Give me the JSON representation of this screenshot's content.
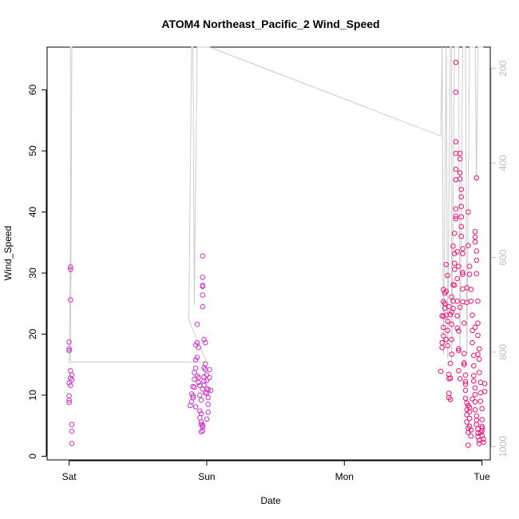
{
  "chart_data": {
    "type": "scatter",
    "title": "ATOM4 Northeast_Pacific_2 Wind_Speed",
    "xlabel": "Date",
    "ylabel": "Wind_Speed",
    "x_ticks": [
      {
        "label": "Sat",
        "value": 0
      },
      {
        "label": "Sun",
        "value": 1
      },
      {
        "label": "Mon",
        "value": 2
      },
      {
        "label": "Tue",
        "value": 3
      }
    ],
    "y_ticks": [
      0,
      10,
      20,
      30,
      40,
      50,
      60
    ],
    "y_ticks_right": [
      200,
      400,
      600,
      800,
      1000
    ],
    "xlim": [
      -0.16,
      3.06
    ],
    "ylim": [
      -0.6,
      67
    ],
    "ylim_right": [
      1028,
      155
    ],
    "grid": false,
    "colors": {
      "points_early": "#cc33cc",
      "points_late": "#ee1177",
      "line": "#cccccc"
    },
    "series": [
      {
        "kind": "points",
        "points": [
          [
            0.01,
            31.0
          ],
          [
            0.01,
            30.6
          ],
          [
            0.01,
            25.6
          ],
          [
            0.0,
            18.7
          ],
          [
            0.0,
            17.6
          ],
          [
            0.0,
            17.3
          ],
          [
            0.01,
            14.0
          ],
          [
            0.02,
            13.3
          ],
          [
            0.01,
            12.8
          ],
          [
            0.02,
            12.5
          ],
          [
            0.0,
            12.0
          ],
          [
            0.01,
            11.6
          ],
          [
            0.0,
            9.9
          ],
          [
            0.0,
            9.2
          ],
          [
            0.0,
            8.8
          ],
          [
            0.02,
            5.2
          ],
          [
            0.02,
            4.1
          ],
          [
            0.02,
            2.1
          ],
          [
            0.88,
            8.3
          ],
          [
            0.89,
            8.9
          ],
          [
            0.89,
            10.2
          ],
          [
            0.9,
            9.6
          ],
          [
            0.9,
            11.4
          ],
          [
            0.91,
            12.6
          ],
          [
            0.91,
            13.7
          ],
          [
            0.92,
            14.4
          ],
          [
            0.92,
            15.8
          ],
          [
            0.93,
            16.2
          ],
          [
            0.92,
            18.2
          ],
          [
            0.93,
            18.6
          ],
          [
            0.93,
            21.6
          ],
          [
            0.94,
            17.8
          ],
          [
            0.94,
            12.1
          ],
          [
            0.95,
            11.6
          ],
          [
            0.95,
            10.0
          ],
          [
            0.95,
            7.4
          ],
          [
            0.96,
            7.0
          ],
          [
            0.96,
            5.6
          ],
          [
            0.96,
            5.2
          ],
          [
            0.97,
            4.8
          ],
          [
            0.97,
            4.2
          ],
          [
            0.97,
            5.1
          ],
          [
            0.96,
            9.2
          ],
          [
            0.97,
            11.0
          ],
          [
            0.98,
            12.3
          ],
          [
            0.98,
            13.0
          ],
          [
            0.98,
            14.5
          ],
          [
            0.97,
            32.8
          ],
          [
            0.97,
            29.3
          ],
          [
            0.97,
            28.0
          ],
          [
            0.97,
            27.8
          ],
          [
            0.97,
            26.4
          ],
          [
            0.97,
            24.5
          ],
          [
            0.98,
            19.1
          ],
          [
            0.99,
            18.6
          ],
          [
            0.99,
            15.1
          ],
          [
            0.99,
            14.2
          ],
          [
            1.0,
            13.3
          ],
          [
            1.0,
            12.4
          ],
          [
            1.0,
            11.1
          ],
          [
            1.0,
            10.3
          ],
          [
            1.01,
            9.6
          ],
          [
            1.01,
            8.5
          ],
          [
            1.01,
            7.2
          ],
          [
            1.0,
            6.1
          ],
          [
            1.02,
            14.2
          ],
          [
            1.02,
            12.9
          ],
          [
            1.03,
            10.8
          ],
          [
            0.9,
            9.9
          ],
          [
            0.91,
            11.3
          ],
          [
            0.93,
            13.2
          ],
          [
            0.95,
            6.3
          ],
          [
            0.96,
            4.0
          ],
          [
            0.99,
            10.4
          ],
          [
            1.01,
            10.9
          ],
          [
            0.92,
            8.1
          ],
          [
            0.94,
            12.9
          ],
          [
            0.98,
            11.6
          ],
          [
            2.7,
            13.9
          ],
          [
            2.71,
            17.8
          ],
          [
            2.71,
            18.6
          ],
          [
            2.72,
            19.7
          ],
          [
            2.72,
            21.1
          ],
          [
            2.72,
            22.9
          ],
          [
            2.73,
            24.2
          ],
          [
            2.73,
            25.0
          ],
          [
            2.73,
            26.7
          ],
          [
            2.74,
            27.0
          ],
          [
            2.74,
            31.4
          ],
          [
            2.74,
            23.1
          ],
          [
            2.75,
            22.1
          ],
          [
            2.75,
            20.6
          ],
          [
            2.75,
            18.1
          ],
          [
            2.76,
            13.4
          ],
          [
            2.76,
            12.7
          ],
          [
            2.76,
            10.3
          ],
          [
            2.76,
            9.6
          ],
          [
            2.77,
            9.3
          ],
          [
            2.77,
            12.8
          ],
          [
            2.77,
            15.2
          ],
          [
            2.78,
            16.7
          ],
          [
            2.78,
            19.1
          ],
          [
            2.78,
            21.6
          ],
          [
            2.78,
            23.6
          ],
          [
            2.79,
            24.2
          ],
          [
            2.79,
            25.4
          ],
          [
            2.79,
            28.1
          ],
          [
            2.8,
            30.6
          ],
          [
            2.8,
            31.6
          ],
          [
            2.8,
            33.2
          ],
          [
            2.8,
            36.5
          ],
          [
            2.81,
            38.9
          ],
          [
            2.81,
            39.3
          ],
          [
            2.81,
            40.5
          ],
          [
            2.81,
            45.3
          ],
          [
            2.81,
            47.0
          ],
          [
            2.81,
            49.6
          ],
          [
            2.81,
            51.5
          ],
          [
            2.81,
            59.6
          ],
          [
            2.81,
            64.5
          ],
          [
            2.82,
            33.5
          ],
          [
            2.82,
            29.1
          ],
          [
            2.82,
            25.4
          ],
          [
            2.82,
            23.0
          ],
          [
            2.82,
            21.0
          ],
          [
            2.83,
            20.5
          ],
          [
            2.83,
            17.6
          ],
          [
            2.83,
            17.3
          ],
          [
            2.83,
            14.0
          ],
          [
            2.84,
            12.7
          ],
          [
            2.84,
            49.6
          ],
          [
            2.84,
            48.7
          ],
          [
            2.84,
            46.4
          ],
          [
            2.84,
            45.4
          ],
          [
            2.85,
            43.7
          ],
          [
            2.85,
            42.5
          ],
          [
            2.85,
            40.9
          ],
          [
            2.85,
            39.2
          ],
          [
            2.85,
            37.6
          ],
          [
            2.85,
            36.0
          ],
          [
            2.86,
            34.0
          ],
          [
            2.86,
            33.2
          ],
          [
            2.86,
            29.8
          ],
          [
            2.86,
            27.4
          ],
          [
            2.86,
            25.3
          ],
          [
            2.87,
            21.8
          ],
          [
            2.87,
            16.8
          ],
          [
            2.87,
            15.3
          ],
          [
            2.87,
            15.0
          ],
          [
            2.88,
            13.3
          ],
          [
            2.88,
            11.8
          ],
          [
            2.88,
            10.8
          ],
          [
            2.88,
            9.5
          ],
          [
            2.89,
            8.7
          ],
          [
            2.89,
            7.6
          ],
          [
            2.89,
            6.8
          ],
          [
            2.89,
            5.6
          ],
          [
            2.9,
            4.6
          ],
          [
            2.9,
            3.9
          ],
          [
            2.9,
            1.8
          ],
          [
            2.9,
            8.3
          ],
          [
            2.91,
            7.3
          ],
          [
            2.91,
            6.2
          ],
          [
            2.91,
            4.9
          ],
          [
            2.92,
            4.3
          ],
          [
            2.92,
            3.3
          ],
          [
            2.89,
            27.6
          ],
          [
            2.89,
            25.2
          ],
          [
            2.9,
            34.5
          ],
          [
            2.9,
            40.0
          ],
          [
            2.91,
            31.1
          ],
          [
            2.91,
            29.8
          ],
          [
            2.92,
            27.3
          ],
          [
            2.92,
            25.4
          ],
          [
            2.93,
            23.1
          ],
          [
            2.93,
            20.6
          ],
          [
            2.93,
            18.6
          ],
          [
            2.94,
            16.5
          ],
          [
            2.94,
            14.8
          ],
          [
            2.94,
            13.2
          ],
          [
            2.94,
            12.3
          ],
          [
            2.95,
            11.2
          ],
          [
            2.95,
            10.1
          ],
          [
            2.95,
            8.9
          ],
          [
            2.95,
            7.6
          ],
          [
            2.96,
            6.6
          ],
          [
            2.96,
            5.9
          ],
          [
            2.96,
            5.2
          ],
          [
            2.97,
            4.5
          ],
          [
            2.97,
            3.8
          ],
          [
            2.97,
            3.2
          ],
          [
            2.98,
            2.6
          ],
          [
            2.98,
            2.1
          ],
          [
            2.96,
            45.6
          ],
          [
            2.95,
            36.8
          ],
          [
            2.95,
            35.9
          ],
          [
            2.95,
            35.1
          ],
          [
            2.96,
            33.6
          ],
          [
            2.96,
            32.1
          ],
          [
            2.96,
            29.9
          ],
          [
            2.97,
            25.4
          ],
          [
            2.97,
            21.8
          ],
          [
            2.97,
            19.8
          ],
          [
            2.98,
            17.6
          ],
          [
            2.98,
            15.9
          ],
          [
            2.98,
            13.7
          ],
          [
            2.99,
            12.1
          ],
          [
            2.99,
            10.4
          ],
          [
            2.99,
            9.0
          ],
          [
            3.0,
            7.8
          ],
          [
            3.0,
            6.0
          ],
          [
            3.0,
            4.9
          ],
          [
            3.0,
            4.2
          ],
          [
            3.0,
            3.4
          ],
          [
            3.01,
            2.8
          ],
          [
            3.01,
            2.3
          ],
          [
            3.02,
            10.6
          ],
          [
            3.02,
            11.9
          ],
          [
            2.71,
            23.0
          ],
          [
            2.72,
            25.3
          ],
          [
            2.74,
            19.1
          ],
          [
            2.76,
            24.5
          ],
          [
            2.78,
            26.1
          ],
          [
            2.8,
            28.0
          ],
          [
            2.83,
            31.1
          ],
          [
            2.86,
            30.1
          ],
          [
            2.88,
            12.2
          ],
          [
            2.91,
            8.0
          ],
          [
            2.93,
            9.4
          ],
          [
            2.95,
            21.1
          ],
          [
            2.97,
            16.7
          ],
          [
            2.99,
            3.9
          ],
          [
            3.0,
            4.6
          ],
          [
            2.72,
            27.3
          ],
          [
            2.75,
            29.6
          ],
          [
            2.77,
            23.2
          ],
          [
            2.79,
            34.4
          ],
          [
            2.84,
            24.4
          ]
        ]
      },
      {
        "kind": "line",
        "axis": "right",
        "points": [
          [
            0.0,
            824
          ],
          [
            0.01,
            560
          ],
          [
            0.01,
            150
          ],
          [
            0.02,
            150
          ],
          [
            0.01,
            821
          ],
          [
            1.0,
            821
          ],
          [
            0.87,
            733
          ],
          [
            0.89,
            150
          ],
          [
            0.9,
            150
          ],
          [
            0.91,
            700
          ],
          [
            0.93,
            150
          ],
          [
            0.94,
            150
          ],
          [
            0.95,
            150
          ],
          [
            1.02,
            150
          ],
          [
            2.7,
            343
          ],
          [
            2.71,
            150
          ],
          [
            2.72,
            806
          ],
          [
            2.74,
            150
          ],
          [
            2.75,
            813
          ],
          [
            2.77,
            150
          ],
          [
            2.78,
            150
          ],
          [
            2.78,
            821
          ],
          [
            2.8,
            150
          ],
          [
            2.82,
            150
          ],
          [
            2.83,
            150
          ],
          [
            2.84,
            806
          ],
          [
            2.86,
            150
          ],
          [
            2.87,
            150
          ],
          [
            2.88,
            150
          ],
          [
            2.89,
            806
          ],
          [
            2.91,
            150
          ],
          [
            2.92,
            150
          ],
          [
            2.93,
            150
          ],
          [
            2.94,
            150
          ],
          [
            2.95,
            150
          ],
          [
            2.96,
            440
          ],
          [
            2.97,
            150
          ],
          [
            3.0,
            150
          ],
          [
            3.01,
            150
          ]
        ]
      }
    ]
  }
}
